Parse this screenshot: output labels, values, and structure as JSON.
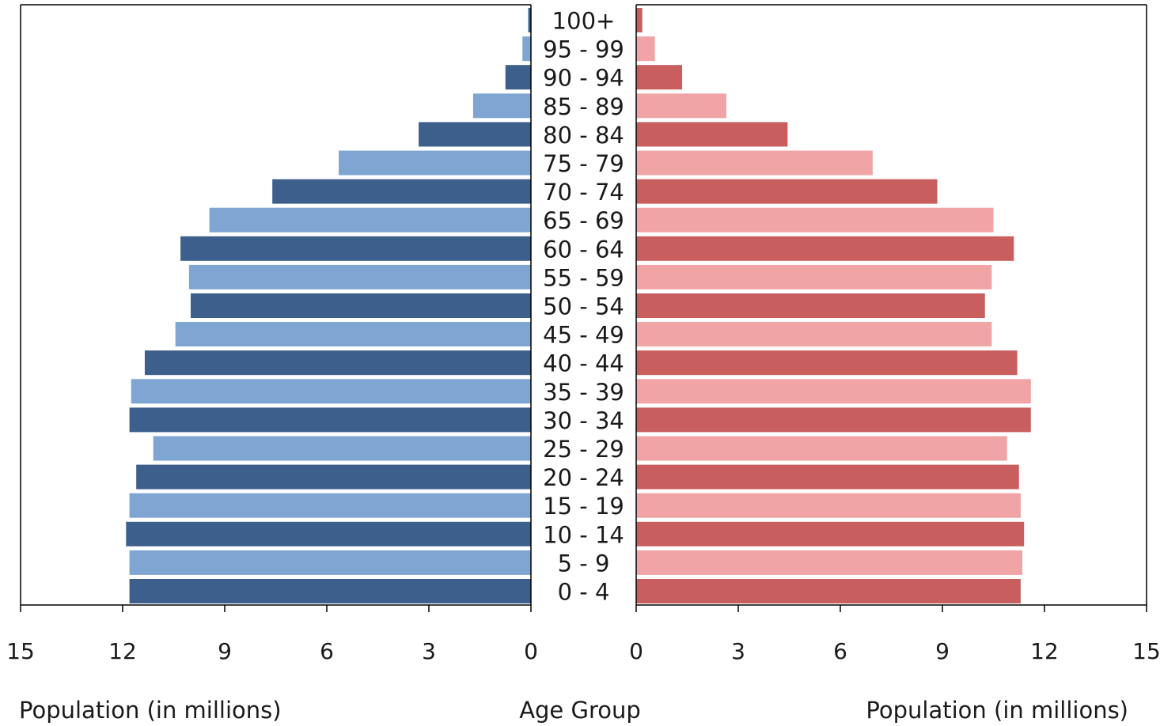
{
  "chart_data": {
    "type": "bar",
    "orientation": "horizontal",
    "layout": "population-pyramid",
    "age_groups": [
      "0 - 4",
      "5 - 9",
      "10 - 14",
      "15 - 19",
      "20 - 24",
      "25 - 29",
      "30 - 34",
      "35 - 39",
      "40 - 44",
      "45 - 49",
      "50 - 54",
      "55 - 59",
      "60 - 64",
      "65 - 69",
      "70 - 74",
      "75 - 79",
      "80 - 84",
      "85 - 89",
      "90 - 94",
      "95 - 99",
      "100+"
    ],
    "series": [
      {
        "side": "left",
        "values": [
          11.8,
          11.8,
          11.9,
          11.8,
          11.6,
          11.1,
          11.8,
          11.75,
          11.35,
          10.45,
          10.0,
          10.05,
          10.3,
          9.45,
          7.6,
          5.65,
          3.3,
          1.7,
          0.75,
          0.25,
          0.08
        ],
        "colors": [
          "#3d5f8c",
          "#7fa5d2"
        ]
      },
      {
        "side": "right",
        "values": [
          11.3,
          11.35,
          11.4,
          11.3,
          11.25,
          10.9,
          11.6,
          11.6,
          11.2,
          10.45,
          10.25,
          10.45,
          11.1,
          10.5,
          8.85,
          6.95,
          4.45,
          2.65,
          1.35,
          0.55,
          0.18
        ],
        "colors": [
          "#c85f5e",
          "#f0a4a6"
        ]
      }
    ],
    "xlim": [
      0,
      15
    ],
    "xticks": [
      "0",
      "3",
      "6",
      "9",
      "12",
      "15"
    ],
    "xlabel_left": "Population (in millions)",
    "xlabel_center": "Age Group",
    "xlabel_right": "Population (in millions)"
  }
}
